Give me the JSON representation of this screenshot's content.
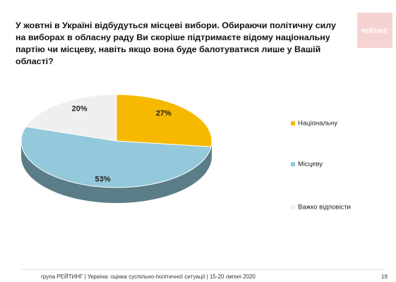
{
  "chart_data": {
    "type": "pie",
    "title": "У жовтні в Україні відбудуться місцеві вибори. Обираючи політичну силу на виборах в обласну раду Ви скоріше підтримаєте відому національну партію чи місцеву, навіть якщо вона буде балотуватися лише у Вашій області?",
    "categories": [
      "Національну",
      "Місцеву",
      "Важко відповісти"
    ],
    "values": [
      27,
      53,
      20
    ],
    "value_labels": [
      "27%",
      "53%",
      "20%"
    ],
    "colors": [
      "#f6b900",
      "#93c9da",
      "#efefef"
    ],
    "legend": "right"
  },
  "logo": "РЕЙТИНГ",
  "footer": "група РЕЙТИНГ |  Україна: оцінка суспільно-політичної  ситуації  | 15-20 липня  2020",
  "page_number": 19
}
